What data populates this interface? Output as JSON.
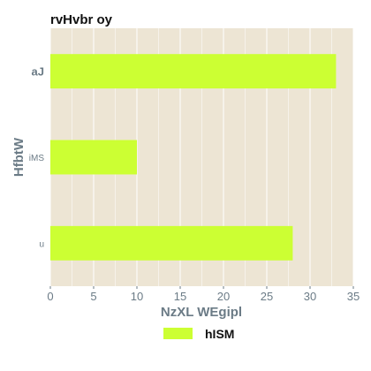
{
  "chart_data": {
    "type": "bar",
    "orientation": "horizontal",
    "title": "rvHvbr oy",
    "xlabel": "NzXL WEgipl",
    "ylabel": "HfbtW",
    "categories": [
      "aJ",
      "iMS",
      "u"
    ],
    "series": [
      {
        "name": "hISM",
        "values": [
          33,
          10,
          28
        ]
      }
    ],
    "xlim": [
      0,
      35
    ],
    "xticks": [
      0,
      5,
      10,
      15,
      20,
      25,
      30,
      35
    ],
    "grid": true,
    "legend_position": "bottom",
    "colors": {
      "bar": "#ccff33",
      "plot_background": "#ede5d4",
      "grid": "#ffffff",
      "text": "#6b7b86"
    }
  }
}
